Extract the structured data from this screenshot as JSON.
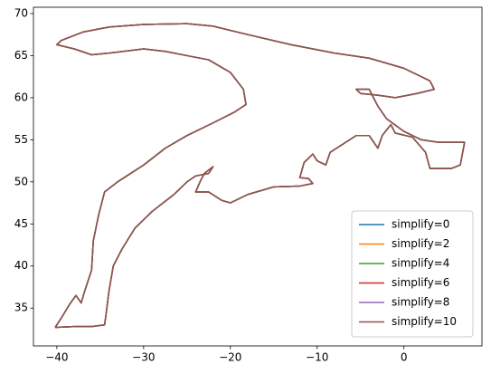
{
  "chart_data": {
    "type": "line",
    "x": [
      -40.2,
      -39.5,
      -38.5,
      -37.8,
      -37.2,
      -36.8,
      -36,
      -35.8,
      -35.2,
      -34.5,
      -33,
      -30,
      -27.5,
      -25,
      -22,
      -19.5,
      -18.2,
      -18.5,
      -20,
      -22.5,
      -25,
      -27.5,
      -30,
      -34,
      -36,
      -38,
      -40,
      -39.5,
      -37,
      -34,
      -30,
      -25,
      -22,
      -18,
      -13,
      -8,
      -4,
      0,
      3,
      3.5,
      1.5,
      -1,
      -3,
      -5,
      -5.5,
      -4,
      -3,
      -2,
      0,
      2,
      4,
      7,
      6.5,
      5.5,
      3,
      2.5,
      1,
      -1,
      -1.5,
      -2.5,
      -3,
      -4,
      -5.5,
      -7,
      -8.5,
      -9,
      -10,
      -10.5,
      -11.5,
      -12,
      -11,
      -10.5,
      -12,
      -15,
      -18,
      -20,
      -21,
      -22.5,
      -24,
      -23.5,
      -23,
      -22,
      -22.5,
      -24,
      -25,
      -26.5,
      -29,
      -31,
      -32.5,
      -33.5,
      -34,
      -34.3,
      -34.5,
      -36,
      -38,
      -40.2
    ],
    "series": [
      {
        "name": "simplify=0",
        "color": "#1f77b4",
        "values": [
          32.7,
          33.8,
          35.5,
          36.5,
          35.6,
          37,
          39.5,
          43,
          46,
          48.8,
          50,
          52,
          54,
          55.5,
          57,
          58.3,
          59.2,
          61,
          63,
          64.5,
          65,
          65.5,
          65.8,
          65.3,
          65.1,
          65.8,
          66.3,
          66.8,
          67.8,
          68.4,
          68.7,
          68.8,
          68.5,
          67.5,
          66.3,
          65.3,
          64.7,
          63.5,
          62,
          61,
          60.5,
          60,
          60.3,
          60.5,
          61,
          61,
          59,
          57.5,
          56,
          55,
          54.7,
          54.7,
          52,
          51.6,
          51.6,
          53.5,
          55.3,
          55.8,
          56.8,
          55.5,
          54,
          55.5,
          55.5,
          54.5,
          53.5,
          52,
          52.5,
          53.3,
          52.3,
          50.5,
          50.4,
          49.8,
          49.5,
          49.4,
          48.5,
          47.5,
          47.8,
          48.8,
          48.8,
          50,
          51,
          51.8,
          51,
          50.7,
          50,
          48.5,
          46.5,
          44.5,
          42,
          40,
          37,
          34.5,
          33,
          32.8,
          32.8,
          32.7
        ]
      },
      {
        "name": "simplify=2",
        "color": "#ff7f0e",
        "values": [
          32.7,
          33.8,
          35.5,
          36.5,
          35.6,
          37,
          39.5,
          43,
          46,
          48.8,
          50,
          52,
          54,
          55.5,
          57,
          58.3,
          59.2,
          61,
          63,
          64.5,
          65,
          65.5,
          65.8,
          65.3,
          65.1,
          65.8,
          66.3,
          66.8,
          67.8,
          68.4,
          68.7,
          68.8,
          68.5,
          67.5,
          66.3,
          65.3,
          64.7,
          63.5,
          62,
          61,
          60.5,
          60,
          60.3,
          60.5,
          61,
          61,
          59,
          57.5,
          56,
          55,
          54.7,
          54.7,
          52,
          51.6,
          51.6,
          53.5,
          55.3,
          55.8,
          56.8,
          55.5,
          54,
          55.5,
          55.5,
          54.5,
          53.5,
          52,
          52.5,
          53.3,
          52.3,
          50.5,
          50.4,
          49.8,
          49.5,
          49.4,
          48.5,
          47.5,
          47.8,
          48.8,
          48.8,
          50,
          51,
          51.8,
          51,
          50.7,
          50,
          48.5,
          46.5,
          44.5,
          42,
          40,
          37,
          34.5,
          33,
          32.8,
          32.8,
          32.7
        ]
      },
      {
        "name": "simplify=4",
        "color": "#2ca02c",
        "values": [
          32.7,
          33.8,
          35.5,
          36.5,
          35.6,
          37,
          39.5,
          43,
          46,
          48.8,
          50,
          52,
          54,
          55.5,
          57,
          58.3,
          59.2,
          61,
          63,
          64.5,
          65,
          65.5,
          65.8,
          65.3,
          65.1,
          65.8,
          66.3,
          66.8,
          67.8,
          68.4,
          68.7,
          68.8,
          68.5,
          67.5,
          66.3,
          65.3,
          64.7,
          63.5,
          62,
          61,
          60.5,
          60,
          60.3,
          60.5,
          61,
          61,
          59,
          57.5,
          56,
          55,
          54.7,
          54.7,
          52,
          51.6,
          51.6,
          53.5,
          55.3,
          55.8,
          56.8,
          55.5,
          54,
          55.5,
          55.5,
          54.5,
          53.5,
          52,
          52.5,
          53.3,
          52.3,
          50.5,
          50.4,
          49.8,
          49.5,
          49.4,
          48.5,
          47.5,
          47.8,
          48.8,
          48.8,
          50,
          51,
          51.8,
          51,
          50.7,
          50,
          48.5,
          46.5,
          44.5,
          42,
          40,
          37,
          34.5,
          33,
          32.8,
          32.8,
          32.7
        ]
      },
      {
        "name": "simplify=6",
        "color": "#d62728",
        "values": [
          32.7,
          33.8,
          35.5,
          36.5,
          35.6,
          37,
          39.5,
          43,
          46,
          48.8,
          50,
          52,
          54,
          55.5,
          57,
          58.3,
          59.2,
          61,
          63,
          64.5,
          65,
          65.5,
          65.8,
          65.3,
          65.1,
          65.8,
          66.3,
          66.8,
          67.8,
          68.4,
          68.7,
          68.8,
          68.5,
          67.5,
          66.3,
          65.3,
          64.7,
          63.5,
          62,
          61,
          60.5,
          60,
          60.3,
          60.5,
          61,
          61,
          59,
          57.5,
          56,
          55,
          54.7,
          54.7,
          52,
          51.6,
          51.6,
          53.5,
          55.3,
          55.8,
          56.8,
          55.5,
          54,
          55.5,
          55.5,
          54.5,
          53.5,
          52,
          52.5,
          53.3,
          52.3,
          50.5,
          50.4,
          49.8,
          49.5,
          49.4,
          48.5,
          47.5,
          47.8,
          48.8,
          48.8,
          50,
          51,
          51.8,
          51,
          50.7,
          50,
          48.5,
          46.5,
          44.5,
          42,
          40,
          37,
          34.5,
          33,
          32.8,
          32.8,
          32.7
        ]
      },
      {
        "name": "simplify=8",
        "color": "#9467bd",
        "values": [
          32.7,
          33.8,
          35.5,
          36.5,
          35.6,
          37,
          39.5,
          43,
          46,
          48.8,
          50,
          52,
          54,
          55.5,
          57,
          58.3,
          59.2,
          61,
          63,
          64.5,
          65,
          65.5,
          65.8,
          65.3,
          65.1,
          65.8,
          66.3,
          66.8,
          67.8,
          68.4,
          68.7,
          68.8,
          68.5,
          67.5,
          66.3,
          65.3,
          64.7,
          63.5,
          62,
          61,
          60.5,
          60,
          60.3,
          60.5,
          61,
          61,
          59,
          57.5,
          56,
          55,
          54.7,
          54.7,
          52,
          51.6,
          51.6,
          53.5,
          55.3,
          55.8,
          56.8,
          55.5,
          54,
          55.5,
          55.5,
          54.5,
          53.5,
          52,
          52.5,
          53.3,
          52.3,
          50.5,
          50.4,
          49.8,
          49.5,
          49.4,
          48.5,
          47.5,
          47.8,
          48.8,
          48.8,
          50,
          51,
          51.8,
          51,
          50.7,
          50,
          48.5,
          46.5,
          44.5,
          42,
          40,
          37,
          34.5,
          33,
          32.8,
          32.8,
          32.7
        ]
      },
      {
        "name": "simplify=10",
        "color": "#8c564b",
        "values": [
          32.7,
          33.8,
          35.5,
          36.5,
          35.6,
          37,
          39.5,
          43,
          46,
          48.8,
          50,
          52,
          54,
          55.5,
          57,
          58.3,
          59.2,
          61,
          63,
          64.5,
          65,
          65.5,
          65.8,
          65.3,
          65.1,
          65.8,
          66.3,
          66.8,
          67.8,
          68.4,
          68.7,
          68.8,
          68.5,
          67.5,
          66.3,
          65.3,
          64.7,
          63.5,
          62,
          61,
          60.5,
          60,
          60.3,
          60.5,
          61,
          61,
          59,
          57.5,
          56,
          55,
          54.7,
          54.7,
          52,
          51.6,
          51.6,
          53.5,
          55.3,
          55.8,
          56.8,
          55.5,
          54,
          55.5,
          55.5,
          54.5,
          53.5,
          52,
          52.5,
          53.3,
          52.3,
          50.5,
          50.4,
          49.8,
          49.5,
          49.4,
          48.5,
          47.5,
          47.8,
          48.8,
          48.8,
          50,
          51,
          51.8,
          51,
          50.7,
          50,
          48.5,
          46.5,
          44.5,
          42,
          40,
          37,
          34.5,
          33,
          32.8,
          32.8,
          32.7
        ]
      }
    ],
    "xlim": [
      -42.7,
      9.0
    ],
    "ylim": [
      30.5,
      70.75
    ],
    "xticks": [
      {
        "value": -40,
        "label": "−40"
      },
      {
        "value": -30,
        "label": "−30"
      },
      {
        "value": -20,
        "label": "−20"
      },
      {
        "value": -10,
        "label": "−10"
      },
      0
    ],
    "yticks": [
      35,
      40,
      45,
      50,
      55,
      60,
      65,
      70
    ],
    "grid": false,
    "legend": "lower right"
  }
}
